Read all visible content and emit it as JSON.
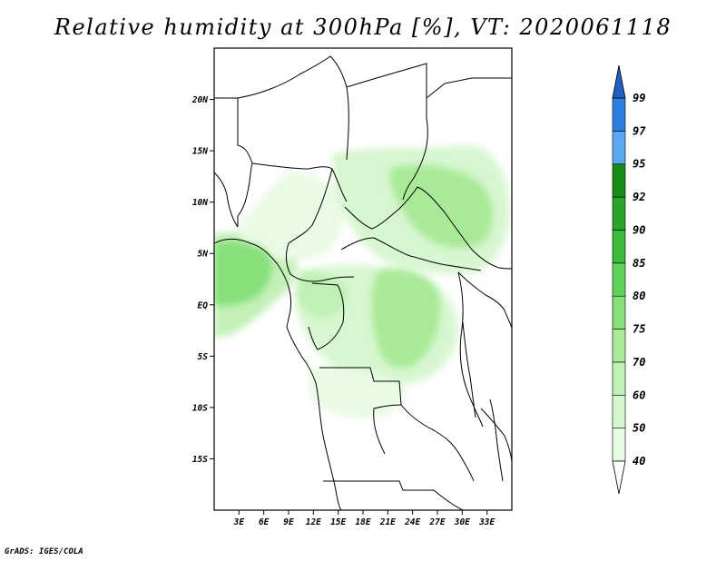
{
  "title": "Relative humidity at 300hPa [%], VT: 2020061118",
  "credit": "GrADS: IGES/COLA",
  "map": {
    "lon_range_E": [
      0,
      36
    ],
    "lat_range_N": [
      -20,
      25
    ],
    "lat_ticks": [
      {
        "value": 20,
        "label": "20N"
      },
      {
        "value": 15,
        "label": "15N"
      },
      {
        "value": 10,
        "label": "10N"
      },
      {
        "value": 5,
        "label": "5N"
      },
      {
        "value": 0,
        "label": "EQ"
      },
      {
        "value": -5,
        "label": "5S"
      },
      {
        "value": -10,
        "label": "10S"
      },
      {
        "value": -15,
        "label": "15S"
      }
    ],
    "lon_ticks": [
      {
        "value": 3,
        "label": "3E"
      },
      {
        "value": 6,
        "label": "6E"
      },
      {
        "value": 9,
        "label": "9E"
      },
      {
        "value": 12,
        "label": "12E"
      },
      {
        "value": 15,
        "label": "15E"
      },
      {
        "value": 18,
        "label": "18E"
      },
      {
        "value": 21,
        "label": "21E"
      },
      {
        "value": 24,
        "label": "24E"
      },
      {
        "value": 27,
        "label": "27E"
      },
      {
        "value": 30,
        "label": "30E"
      },
      {
        "value": 33,
        "label": "33E"
      }
    ]
  },
  "colorbar": {
    "levels": [
      {
        "label": "40",
        "color": "#ffffff"
      },
      {
        "label": "50",
        "color": "#e8fbe3"
      },
      {
        "label": "60",
        "color": "#d6f6cf"
      },
      {
        "label": "70",
        "color": "#c0f0b4"
      },
      {
        "label": "75",
        "color": "#a8ea98"
      },
      {
        "label": "80",
        "color": "#86e07a"
      },
      {
        "label": "85",
        "color": "#5ed25a"
      },
      {
        "label": "90",
        "color": "#3cba3c"
      },
      {
        "label": "92",
        "color": "#2aa32a"
      },
      {
        "label": "95",
        "color": "#1a8c1a"
      },
      {
        "label": "97",
        "color": "#5ca8ee"
      },
      {
        "label": "99",
        "color": "#2f7fe0"
      }
    ],
    "top_arrow_color": "#1f5fc4",
    "bottom_arrow_color": "#ffffff"
  }
}
